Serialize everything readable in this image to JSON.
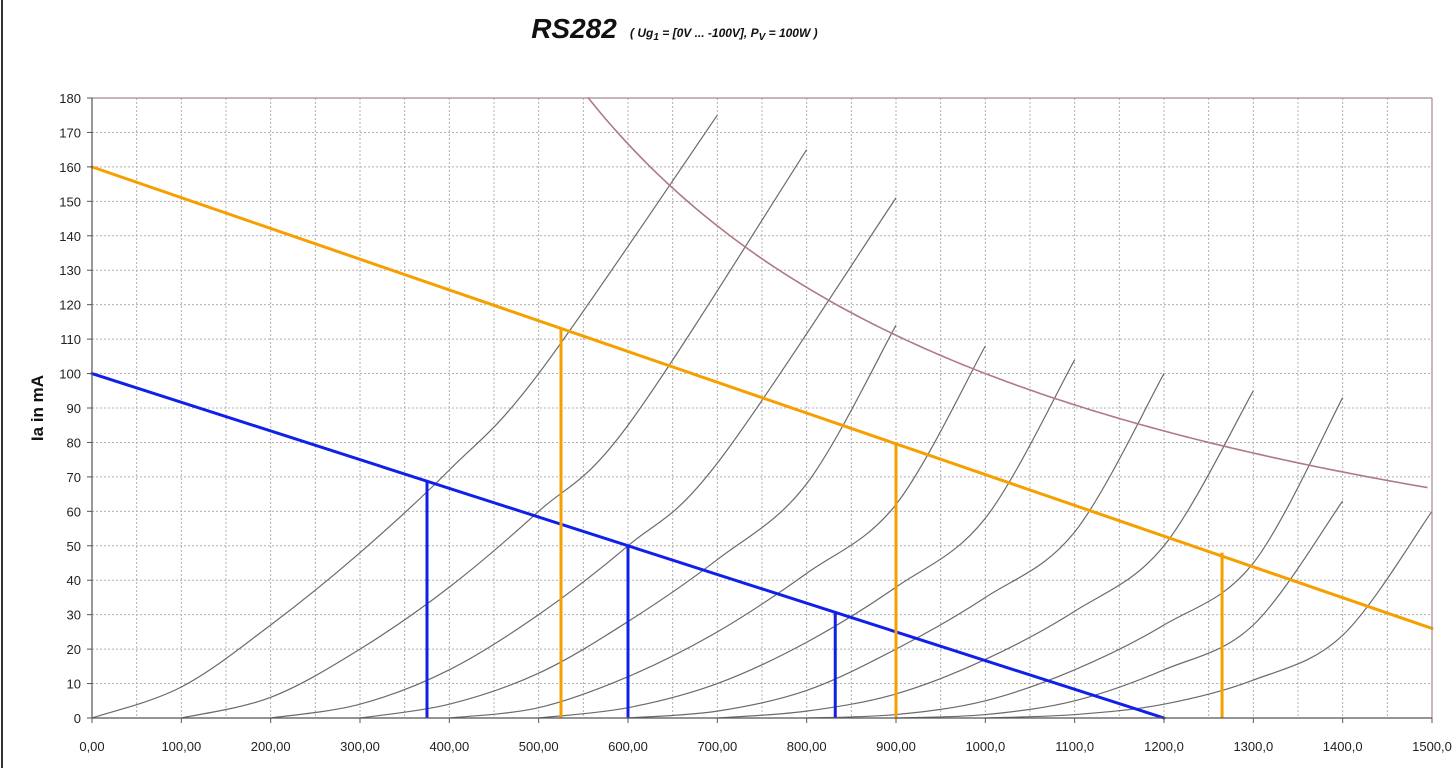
{
  "chart_data": {
    "type": "line",
    "title": "RS282",
    "subtitle": {
      "p1": "( Ug",
      "s1": "1",
      "p2": " = [0V ... -100V], P",
      "s2": "V",
      "p3": " = 100W )"
    },
    "ylabel": "Ia in mA",
    "xlabel": "",
    "xlim": [
      0,
      1500
    ],
    "ylim": [
      0,
      180
    ],
    "x_ticks": [
      0,
      100,
      200,
      300,
      400,
      500,
      600,
      700,
      800,
      900,
      1000,
      1100,
      1200,
      1300,
      1400,
      1500
    ],
    "x_tick_labels": [
      "0,00",
      "100,00",
      "200,00",
      "300,00",
      "400,00",
      "500,00",
      "600,00",
      "700,00",
      "800,00",
      "900,00",
      "1000,0",
      "1100,0",
      "1200,0",
      "1300,0",
      "1400,0",
      "1500,0"
    ],
    "y_ticks": [
      0,
      10,
      20,
      30,
      40,
      50,
      60,
      70,
      80,
      90,
      100,
      110,
      120,
      130,
      140,
      150,
      160,
      170,
      180
    ],
    "y_tick_labels": [
      "0",
      "10",
      "20",
      "30",
      "40",
      "50",
      "60",
      "70",
      "80",
      "90",
      "100",
      "110",
      "120",
      "130",
      "140",
      "150",
      "160",
      "170",
      "180"
    ],
    "grid": true,
    "grid_x_minor": 50,
    "colors": {
      "curve": "#6b6b6b",
      "power": "#b07a82",
      "load_orange": "#f5a000",
      "load_blue": "#1020e8",
      "grid": "#b0b0b0",
      "frame": "#a58a90"
    },
    "series": [
      {
        "x": [
          0,
          100,
          200,
          300,
          400,
          500,
          700
        ],
        "y": [
          0,
          9,
          27,
          48,
          72,
          100,
          175
        ]
      },
      {
        "x": [
          100,
          200,
          300,
          400,
          500,
          600,
          800
        ],
        "y": [
          0,
          6,
          20,
          38,
          60,
          85,
          165
        ]
      },
      {
        "x": [
          200,
          300,
          400,
          500,
          600,
          700,
          900
        ],
        "y": [
          0,
          4,
          14,
          30,
          50,
          74,
          151
        ]
      },
      {
        "x": [
          300,
          400,
          500,
          600,
          700,
          800,
          900
        ],
        "y": [
          0,
          4,
          13,
          28,
          46,
          68,
          114
        ]
      },
      {
        "x": [
          400,
          500,
          600,
          700,
          800,
          900,
          1000
        ],
        "y": [
          0,
          3,
          12,
          25,
          42,
          62,
          108
        ]
      },
      {
        "x": [
          500,
          600,
          700,
          800,
          900,
          1000,
          1100
        ],
        "y": [
          0,
          3,
          10,
          22,
          38,
          58,
          104
        ]
      },
      {
        "x": [
          600,
          700,
          800,
          900,
          1000,
          1100,
          1200
        ],
        "y": [
          0,
          2,
          8,
          20,
          35,
          54,
          100
        ]
      },
      {
        "x": [
          700,
          800,
          900,
          1000,
          1100,
          1200,
          1300
        ],
        "y": [
          0,
          2,
          7,
          17,
          31,
          50,
          95
        ]
      },
      {
        "x": [
          800,
          900,
          1000,
          1100,
          1200,
          1300,
          1400
        ],
        "y": [
          0,
          1,
          5,
          14,
          27,
          45,
          93
        ]
      },
      {
        "x": [
          900,
          1000,
          1100,
          1200,
          1300,
          1400
        ],
        "y": [
          0,
          1,
          5,
          14,
          27,
          63
        ]
      },
      {
        "x": [
          1000,
          1100,
          1200,
          1300,
          1400,
          1500
        ],
        "y": [
          0,
          1,
          4,
          11,
          24,
          60
        ]
      }
    ],
    "power_curve": {
      "watts": 100,
      "x_range": [
        555,
        1500
      ]
    },
    "load_lines": [
      {
        "color_key": "load_orange",
        "from": [
          0,
          160
        ],
        "to": [
          1500,
          26
        ]
      },
      {
        "color_key": "load_blue",
        "from": [
          0,
          100
        ],
        "to": [
          1200,
          0
        ]
      }
    ],
    "verticals": [
      {
        "color_key": "load_orange",
        "x": 525,
        "y": 113
      },
      {
        "color_key": "load_orange",
        "x": 900,
        "y": 80
      },
      {
        "color_key": "load_orange",
        "x": 1265,
        "y": 48
      },
      {
        "color_key": "load_blue",
        "x": 375,
        "y": 69
      },
      {
        "color_key": "load_blue",
        "x": 600,
        "y": 50
      },
      {
        "color_key": "load_blue",
        "x": 832,
        "y": 31
      }
    ]
  }
}
